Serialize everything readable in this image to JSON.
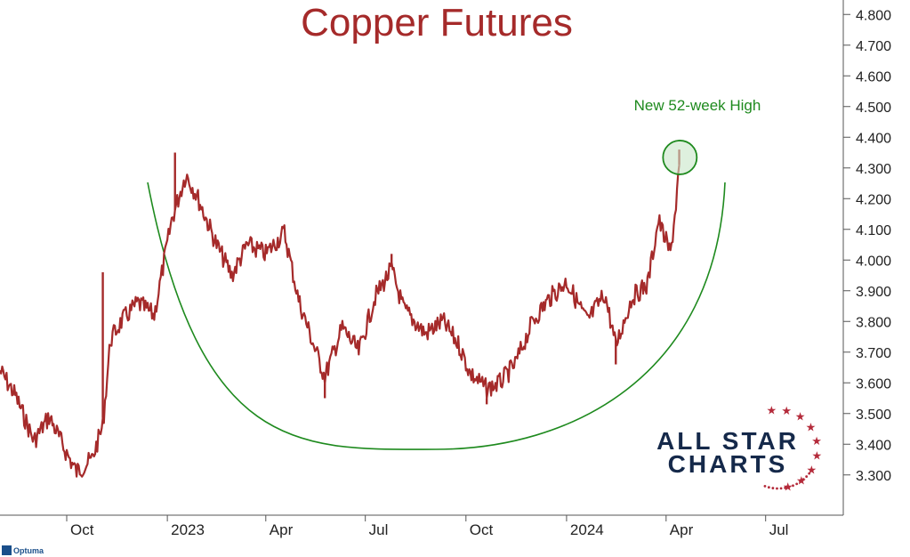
{
  "chart_data": {
    "type": "line",
    "title": "Copper Futures",
    "y_axis": {
      "position": "right",
      "ylim": [
        3.25,
        4.85
      ],
      "ticks": [
        "4.800",
        "4.700",
        "4.600",
        "4.500",
        "4.400",
        "4.300",
        "4.200",
        "4.100",
        "4.000",
        "3.900",
        "3.800",
        "3.700",
        "3.600",
        "3.500",
        "3.400",
        "3.300"
      ]
    },
    "x_axis": {
      "ticks": [
        "Oct",
        "2023",
        "Apr",
        "Jul",
        "Oct",
        "2024",
        "Apr",
        "Jul"
      ],
      "xlim": [
        "2022-08-01",
        "2024-09-10"
      ]
    },
    "series": [
      {
        "color": "#a52a2a",
        "x": [
          "2022-08-01",
          "2022-08-15",
          "2022-09-01",
          "2022-09-15",
          "2022-10-01",
          "2022-10-10",
          "2022-10-24",
          "2022-11-03",
          "2022-11-10",
          "2022-11-20",
          "2022-12-05",
          "2022-12-20",
          "2023-01-05",
          "2023-01-18",
          "2023-01-28",
          "2023-02-15",
          "2023-03-01",
          "2023-03-15",
          "2023-04-01",
          "2023-04-18",
          "2023-05-01",
          "2023-05-15",
          "2023-05-25",
          "2023-06-10",
          "2023-06-25",
          "2023-07-10",
          "2023-07-25",
          "2023-08-05",
          "2023-08-25",
          "2023-09-10",
          "2023-09-25",
          "2023-10-05",
          "2023-10-20",
          "2023-11-01",
          "2023-11-15",
          "2023-12-01",
          "2023-12-15",
          "2024-01-01",
          "2024-01-20",
          "2024-02-05",
          "2024-02-15",
          "2024-03-01",
          "2024-03-15",
          "2024-03-25",
          "2024-04-05",
          "2024-04-10",
          "2024-04-13"
        ],
        "y": [
          3.64,
          3.56,
          3.41,
          3.49,
          3.37,
          3.31,
          3.35,
          3.46,
          3.74,
          3.8,
          3.86,
          3.82,
          4.13,
          4.28,
          4.21,
          4.05,
          3.95,
          4.05,
          4.02,
          4.09,
          3.87,
          3.72,
          3.62,
          3.78,
          3.7,
          3.88,
          3.97,
          3.84,
          3.76,
          3.8,
          3.72,
          3.63,
          3.58,
          3.6,
          3.66,
          3.8,
          3.87,
          3.93,
          3.8,
          3.89,
          3.72,
          3.88,
          3.92,
          4.13,
          4.02,
          4.18,
          4.31
        ],
        "spikes": [
          {
            "x": "2022-11-03",
            "high": 3.96
          },
          {
            "x": "2023-01-08",
            "high": 4.35
          },
          {
            "x": "2023-05-25",
            "high": 3.55
          },
          {
            "x": "2023-07-25",
            "high": 4.02
          },
          {
            "x": "2023-10-20",
            "high": 3.53
          },
          {
            "x": "2024-02-15",
            "high": 3.66
          },
          {
            "x": "2024-04-13",
            "high": 4.36
          }
        ]
      }
    ],
    "annotations": {
      "text": "New 52-week High",
      "highlight": {
        "x": "2024-04-12",
        "y": 4.34
      },
      "bowl_curve_color": "#1e8a1e"
    },
    "grid": false
  },
  "logo": {
    "line1": "ALL STAR",
    "line2": "CHARTS"
  },
  "brand": "Optuma"
}
